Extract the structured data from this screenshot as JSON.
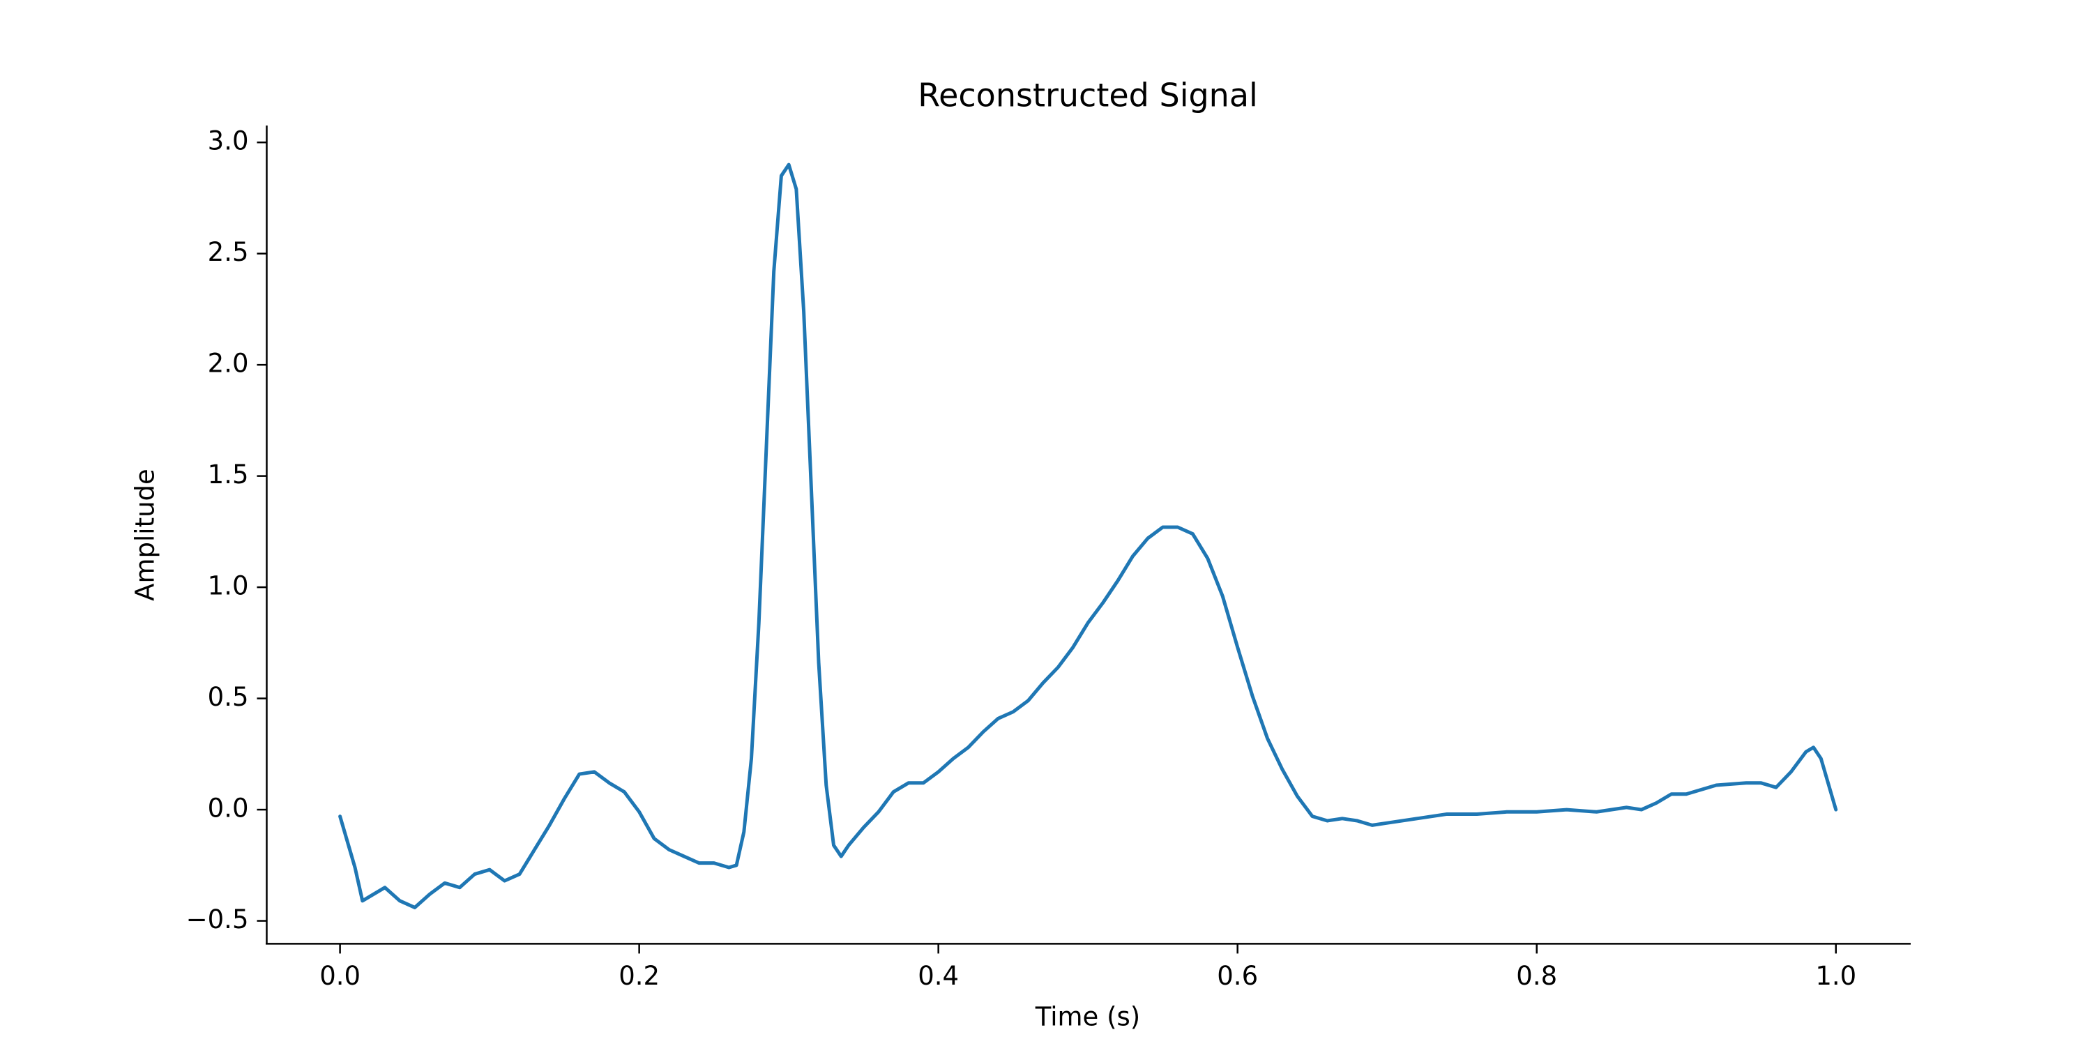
{
  "chart_data": {
    "type": "line",
    "title": "Reconstructed Signal",
    "x_label": "Time (s)",
    "y_label": "Amplitude",
    "xlim": [
      -0.049,
      1.05
    ],
    "ylim": [
      -0.603,
      3.074
    ],
    "xticks": [
      {
        "value": 0,
        "label": "0.0"
      },
      0.2,
      0.4,
      0.6,
      0.8,
      {
        "value": 1,
        "label": "1.0"
      }
    ],
    "yticks": [
      {
        "value": -0.5,
        "label": "−0.5"
      },
      {
        "value": 0,
        "label": "0.0"
      },
      0.5,
      {
        "value": 1,
        "label": "1.0"
      },
      1.5,
      {
        "value": 2,
        "label": "2.0"
      },
      2.5,
      {
        "value": 3,
        "label": "3.0"
      }
    ],
    "grid": false,
    "series": [
      {
        "name": "Reconstructed Signal",
        "color": "#1f77b4",
        "x": [
          0,
          0.01,
          0.015,
          0.02,
          0.03,
          0.04,
          0.05,
          0.06,
          0.07,
          0.08,
          0.09,
          0.1,
          0.11,
          0.12,
          0.13,
          0.14,
          0.15,
          0.16,
          0.17,
          0.18,
          0.19,
          0.2,
          0.21,
          0.22,
          0.23,
          0.24,
          0.25,
          0.26,
          0.265,
          0.27,
          0.275,
          0.28,
          0.285,
          0.29,
          0.295,
          0.3,
          0.305,
          0.31,
          0.315,
          0.32,
          0.325,
          0.33,
          0.335,
          0.34,
          0.35,
          0.36,
          0.37,
          0.38,
          0.39,
          0.4,
          0.41,
          0.42,
          0.43,
          0.44,
          0.45,
          0.46,
          0.47,
          0.48,
          0.49,
          0.5,
          0.51,
          0.52,
          0.53,
          0.54,
          0.55,
          0.56,
          0.57,
          0.58,
          0.59,
          0.6,
          0.61,
          0.62,
          0.63,
          0.64,
          0.65,
          0.66,
          0.67,
          0.68,
          0.69,
          0.7,
          0.72,
          0.74,
          0.76,
          0.78,
          0.8,
          0.82,
          0.84,
          0.86,
          0.87,
          0.88,
          0.89,
          0.9,
          0.92,
          0.94,
          0.95,
          0.96,
          0.97,
          0.98,
          0.985,
          0.99,
          1.0
        ],
        "values": [
          -0.03,
          -0.26,
          -0.41,
          -0.39,
          -0.35,
          -0.41,
          -0.44,
          -0.38,
          -0.33,
          -0.35,
          -0.29,
          -0.27,
          -0.32,
          -0.29,
          -0.18,
          -0.07,
          0.05,
          0.16,
          0.17,
          0.12,
          0.08,
          -0.01,
          -0.13,
          -0.18,
          -0.21,
          -0.24,
          -0.24,
          -0.26,
          -0.25,
          -0.1,
          0.23,
          0.84,
          1.63,
          2.42,
          2.85,
          2.9,
          2.79,
          2.24,
          1.45,
          0.66,
          0.11,
          -0.16,
          -0.21,
          -0.16,
          -0.08,
          -0.01,
          0.08,
          0.12,
          0.12,
          0.17,
          0.23,
          0.28,
          0.35,
          0.41,
          0.44,
          0.49,
          0.57,
          0.64,
          0.73,
          0.84,
          0.93,
          1.03,
          1.14,
          1.22,
          1.27,
          1.27,
          1.24,
          1.13,
          0.96,
          0.73,
          0.51,
          0.32,
          0.18,
          0.06,
          -0.03,
          -0.05,
          -0.04,
          -0.05,
          -0.07,
          -0.06,
          -0.04,
          -0.02,
          -0.02,
          -0.01,
          -0.01,
          0,
          -0.01,
          0.01,
          0,
          0.03,
          0.07,
          0.07,
          0.11,
          0.12,
          0.12,
          0.1,
          0.17,
          0.26,
          0.28,
          0.23,
          0
        ]
      }
    ]
  }
}
